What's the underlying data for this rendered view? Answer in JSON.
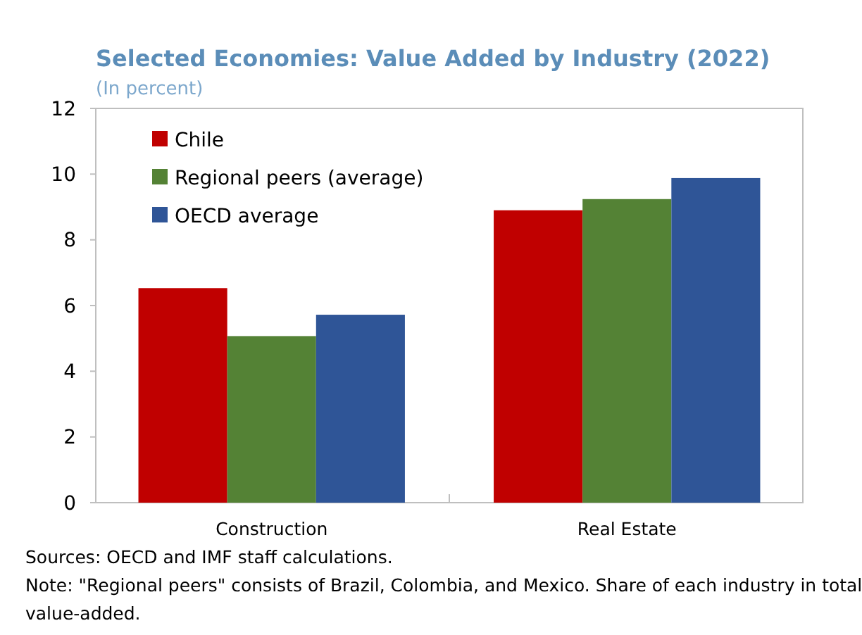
{
  "chart_data": {
    "type": "bar",
    "title": "Selected Economies: Value Added by Industry (2022)",
    "subtitle": "(In percent)",
    "categories": [
      "Construction",
      "Real Estate"
    ],
    "series": [
      {
        "name": "Chile",
        "color": "#c00000",
        "values": [
          6.53,
          8.9
        ]
      },
      {
        "name": "Regional peers (average)",
        "color": "#548235",
        "values": [
          5.07,
          9.24
        ]
      },
      {
        "name": "OECD average",
        "color": "#2f5597",
        "values": [
          5.72,
          9.88
        ]
      }
    ],
    "ylim": [
      0,
      12
    ],
    "yticks": [
      0,
      2,
      4,
      6,
      8,
      10,
      12
    ],
    "grid": false,
    "legend": "top left",
    "annotations": [
      "Sources: OECD and IMF staff calculations.",
      "Note: \"Regional peers\" consists of Brazil, Colombia, and Mexico. Share of each industry in total value-added."
    ]
  }
}
